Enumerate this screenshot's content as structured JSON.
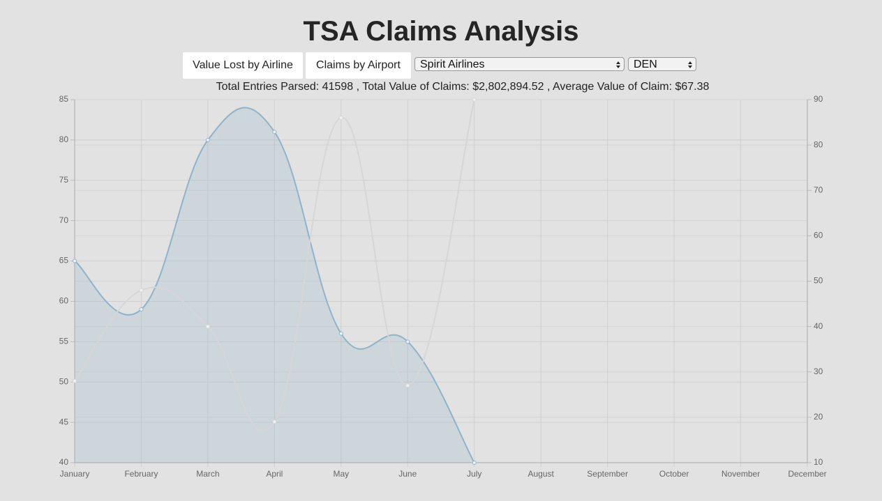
{
  "header": {
    "title": "TSA Claims Analysis"
  },
  "buttons": [
    "Value Lost by Airline",
    "Claims by Airport"
  ],
  "selects": [
    "Spirit Airlines",
    "DEN"
  ],
  "stats": "Total Entries Parsed: 41598 , Total Value of Claims: $2,802,894.52 , Average Value of Claim: $67.38",
  "chart_data": {
    "type": "line",
    "categories": [
      "January",
      "February",
      "March",
      "April",
      "May",
      "June",
      "July",
      "August",
      "September",
      "October",
      "November",
      "December"
    ],
    "series": [
      {
        "color": "#8fb3c9",
        "fill": true,
        "values": [
          65,
          59,
          80,
          81,
          56,
          55,
          40,
          null,
          null,
          null,
          null,
          null
        ]
      },
      {
        "color": "#d6d6d6",
        "axis": "y2",
        "values": [
          28,
          48,
          40,
          19,
          86,
          27,
          90,
          null,
          null,
          null,
          null,
          null
        ]
      }
    ],
    "ylim": [
      40,
      85
    ],
    "yticks": [
      40,
      45,
      50,
      55,
      60,
      65,
      70,
      75,
      80,
      85
    ],
    "y2lim": [
      10,
      90
    ],
    "y2ticks": [
      10,
      20,
      30,
      40,
      50,
      60,
      70,
      80,
      90
    ],
    "grid": true
  }
}
